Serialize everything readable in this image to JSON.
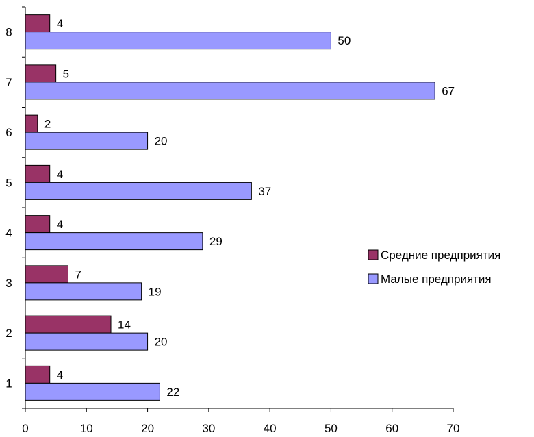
{
  "chart_data": {
    "type": "bar",
    "orientation": "horizontal",
    "categories": [
      "1",
      "2",
      "3",
      "4",
      "5",
      "6",
      "7",
      "8"
    ],
    "series": [
      {
        "name": "Средние предприятия",
        "color": "#993366",
        "values": [
          4,
          14,
          7,
          4,
          4,
          2,
          5,
          4
        ]
      },
      {
        "name": "Малые предприятия",
        "color": "#9999ff",
        "values": [
          22,
          20,
          19,
          29,
          37,
          20,
          67,
          50
        ]
      }
    ],
    "title": "",
    "xlabel": "",
    "ylabel": "",
    "xlim": [
      0,
      70
    ],
    "xticks": [
      0,
      10,
      20,
      30,
      40,
      50,
      60,
      70
    ],
    "grid": false,
    "legend": "right"
  }
}
